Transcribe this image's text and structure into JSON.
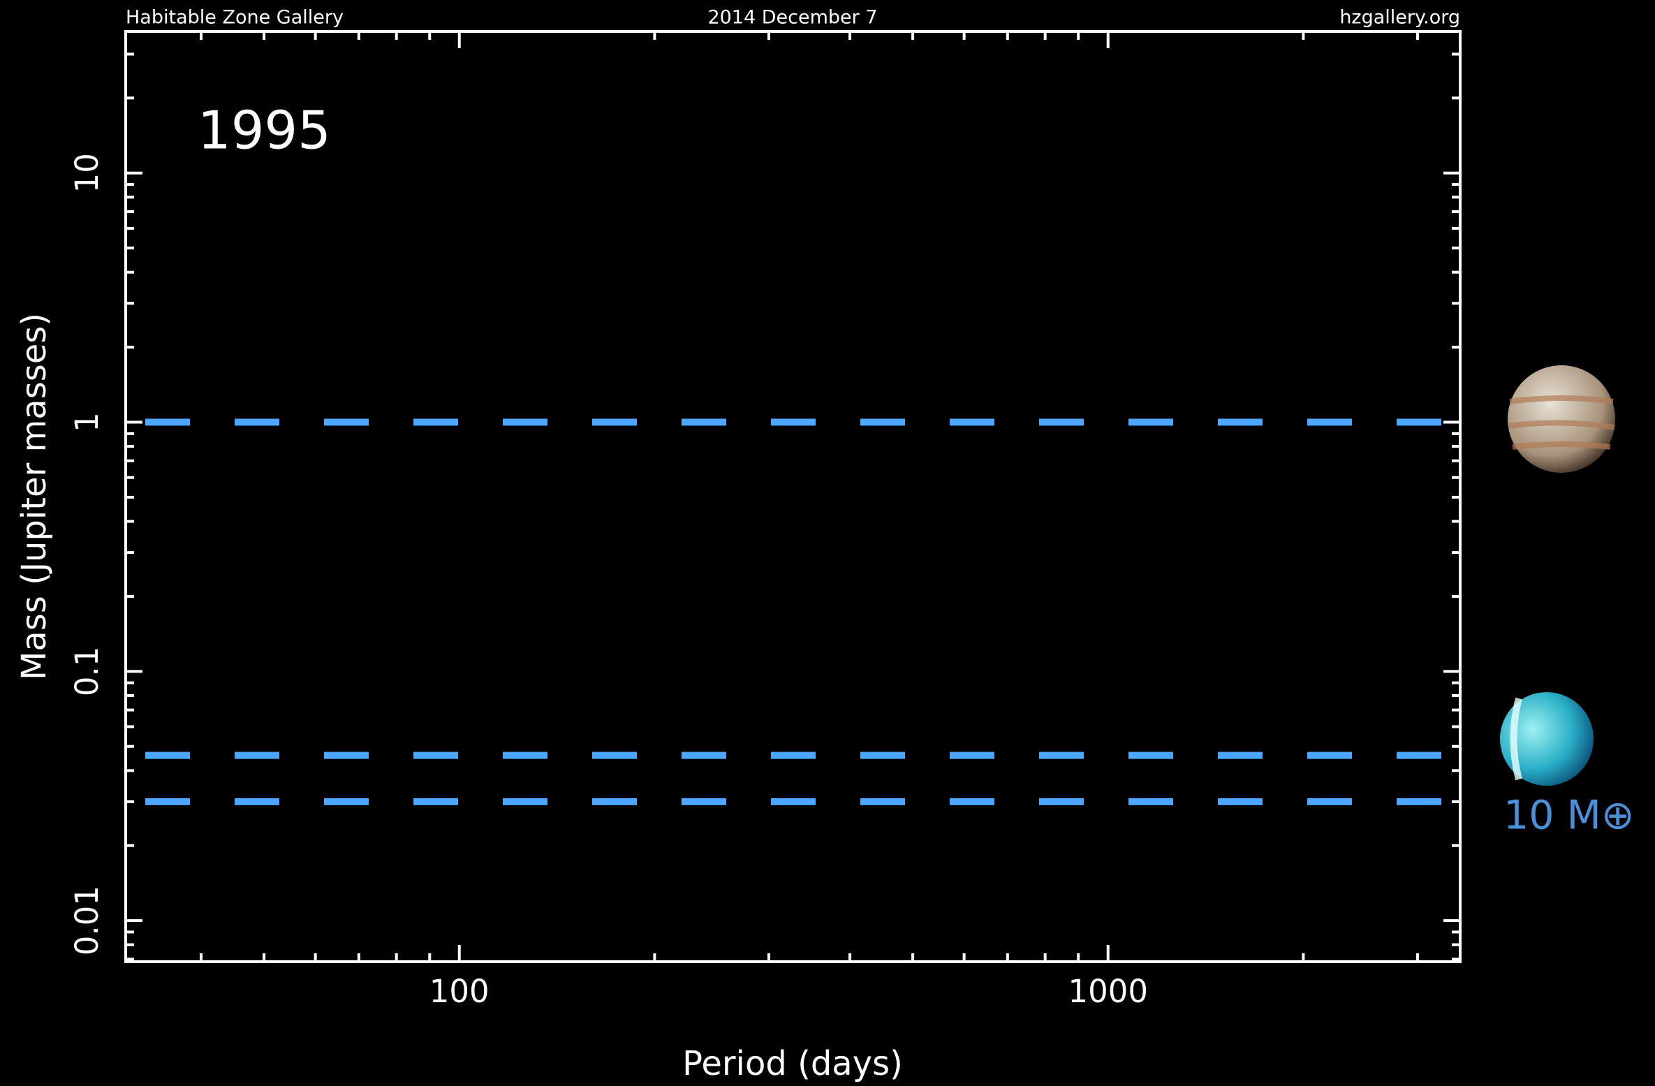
{
  "chart_data": {
    "type": "hline",
    "header": {
      "left": "Habitable Zone Gallery",
      "center": "2014 December 7",
      "right": "hzgallery.org"
    },
    "annotation": "1995",
    "planet_label": "10 M⊕",
    "xlabel": "Period (days)",
    "ylabel": "Mass (Jupiter masses)",
    "xscale": "log",
    "yscale": "log",
    "xlim": [
      30.6,
      3490
    ],
    "ylim": [
      0.00684,
      37
    ],
    "xticks": [
      100,
      1000
    ],
    "xminorticks": [
      40,
      50,
      60,
      70,
      80,
      90,
      200,
      300,
      400,
      500,
      600,
      700,
      800,
      900,
      2000,
      3000
    ],
    "yticks": [
      10,
      1,
      0.1,
      0.01
    ],
    "yminorticks": [
      0.007,
      0.008,
      0.009,
      0.02,
      0.03,
      0.04,
      0.05,
      0.06,
      0.07,
      0.08,
      0.09,
      0.2,
      0.3,
      0.4,
      0.5,
      0.6,
      0.7,
      0.8,
      0.9,
      2,
      3,
      4,
      5,
      6,
      7,
      8,
      9,
      20,
      30
    ],
    "values": [
      1,
      0.046,
      0.03
    ],
    "color": "#4da6ff"
  }
}
